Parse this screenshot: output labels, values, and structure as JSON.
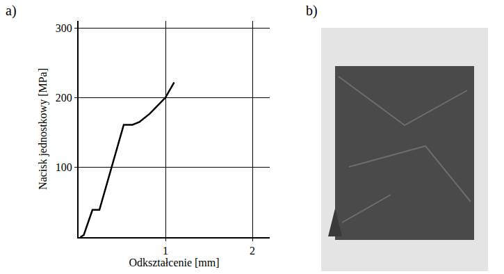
{
  "panel_labels": [
    "a)",
    "b)"
  ],
  "chart_data": {
    "type": "line",
    "xlabel": "Odkształcenie [mm]",
    "ylabel": "Nacisk jednostkowy [MPa]",
    "x": [
      0.02,
      0.06,
      0.16,
      0.24,
      0.52,
      0.62,
      0.7,
      0.82,
      1.0,
      1.1
    ],
    "values": [
      0,
      3,
      39,
      39,
      161,
      161,
      165,
      177,
      200,
      222
    ],
    "color": "#000000",
    "xlim": [
      0,
      2.2
    ],
    "xticks": [
      1,
      2
    ],
    "ylim": [
      0,
      310
    ],
    "yticks": [
      100,
      200,
      300
    ],
    "grid": true
  }
}
